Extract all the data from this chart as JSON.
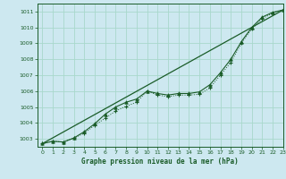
{
  "title": "Graphe pression niveau de la mer (hPa)",
  "background_color": "#cde8f0",
  "grid_color": "#a8d8cc",
  "line_color": "#1a5c28",
  "ylim": [
    1002.5,
    1011.5
  ],
  "xlim": [
    -0.5,
    23
  ],
  "yticks": [
    1003,
    1004,
    1005,
    1006,
    1007,
    1008,
    1009,
    1010,
    1011
  ],
  "xticks": [
    0,
    1,
    2,
    3,
    4,
    5,
    6,
    7,
    8,
    9,
    10,
    11,
    12,
    13,
    14,
    15,
    16,
    17,
    18,
    19,
    20,
    21,
    22,
    23
  ],
  "series_dot_x": [
    0,
    1,
    2,
    3,
    4,
    5,
    6,
    7,
    8,
    9,
    10,
    11,
    12,
    13,
    14,
    15,
    16,
    17,
    18,
    19,
    20,
    21,
    22,
    23
  ],
  "series_dot_y": [
    1002.7,
    1002.85,
    1002.8,
    1003.05,
    1003.35,
    1003.85,
    1004.3,
    1004.75,
    1005.05,
    1005.3,
    1006.0,
    1005.75,
    1005.65,
    1005.75,
    1005.75,
    1005.8,
    1006.2,
    1007.0,
    1007.8,
    1009.0,
    1009.9,
    1010.55,
    1010.9,
    1011.1
  ],
  "series_tri_x": [
    0,
    1,
    2,
    3,
    4,
    5,
    6,
    7,
    8,
    9,
    10,
    11,
    12,
    13,
    14,
    15,
    16,
    17,
    18,
    19,
    20,
    21,
    22,
    23
  ],
  "series_tri_y": [
    1002.7,
    1002.85,
    1002.8,
    1003.05,
    1003.45,
    1003.95,
    1004.55,
    1005.0,
    1005.3,
    1005.5,
    1006.0,
    1005.85,
    1005.75,
    1005.85,
    1005.85,
    1005.95,
    1006.4,
    1007.15,
    1008.0,
    1009.1,
    1010.0,
    1010.65,
    1010.95,
    1011.1
  ],
  "series_line_x": [
    0,
    23
  ],
  "series_line_y": [
    1002.7,
    1011.1
  ]
}
